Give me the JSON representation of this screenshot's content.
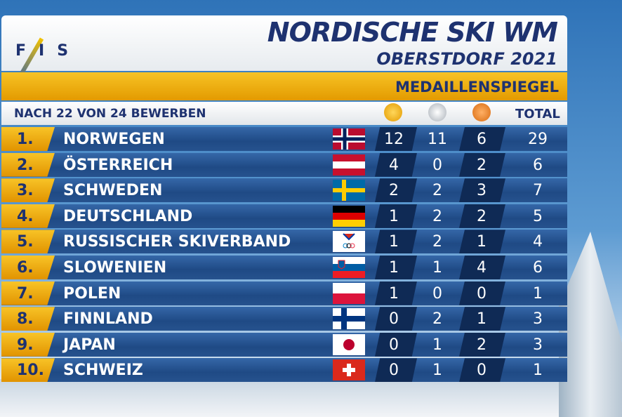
{
  "header": {
    "logo": [
      "F",
      "I",
      "S"
    ],
    "title": "NORDISCHE SKI WM",
    "subtitle": "OBERSTDORF 2021"
  },
  "banner": "MEDAILLENSPIEGEL",
  "table": {
    "caption": "NACH 22 VON 24 BEWERBEN",
    "total_header": "TOTAL",
    "rows": [
      [
        "1.",
        "NORWEGEN",
        12,
        11,
        6,
        29
      ],
      [
        "2.",
        "ÖSTERREICH",
        4,
        0,
        2,
        6
      ],
      [
        "3.",
        "SCHWEDEN",
        2,
        2,
        3,
        7
      ],
      [
        "4.",
        "DEUTSCHLAND",
        1,
        2,
        2,
        5
      ],
      [
        "5.",
        "RUSSISCHER SKIVERBAND",
        1,
        2,
        1,
        4
      ],
      [
        "6.",
        "SLOWENIEN",
        1,
        1,
        4,
        6
      ],
      [
        "7.",
        "POLEN",
        1,
        0,
        0,
        1
      ],
      [
        "8.",
        "FINNLAND",
        0,
        2,
        1,
        3
      ],
      [
        "9.",
        "JAPAN",
        0,
        1,
        2,
        3
      ],
      [
        "10.",
        "SCHWEIZ",
        0,
        1,
        0,
        1
      ]
    ]
  }
}
